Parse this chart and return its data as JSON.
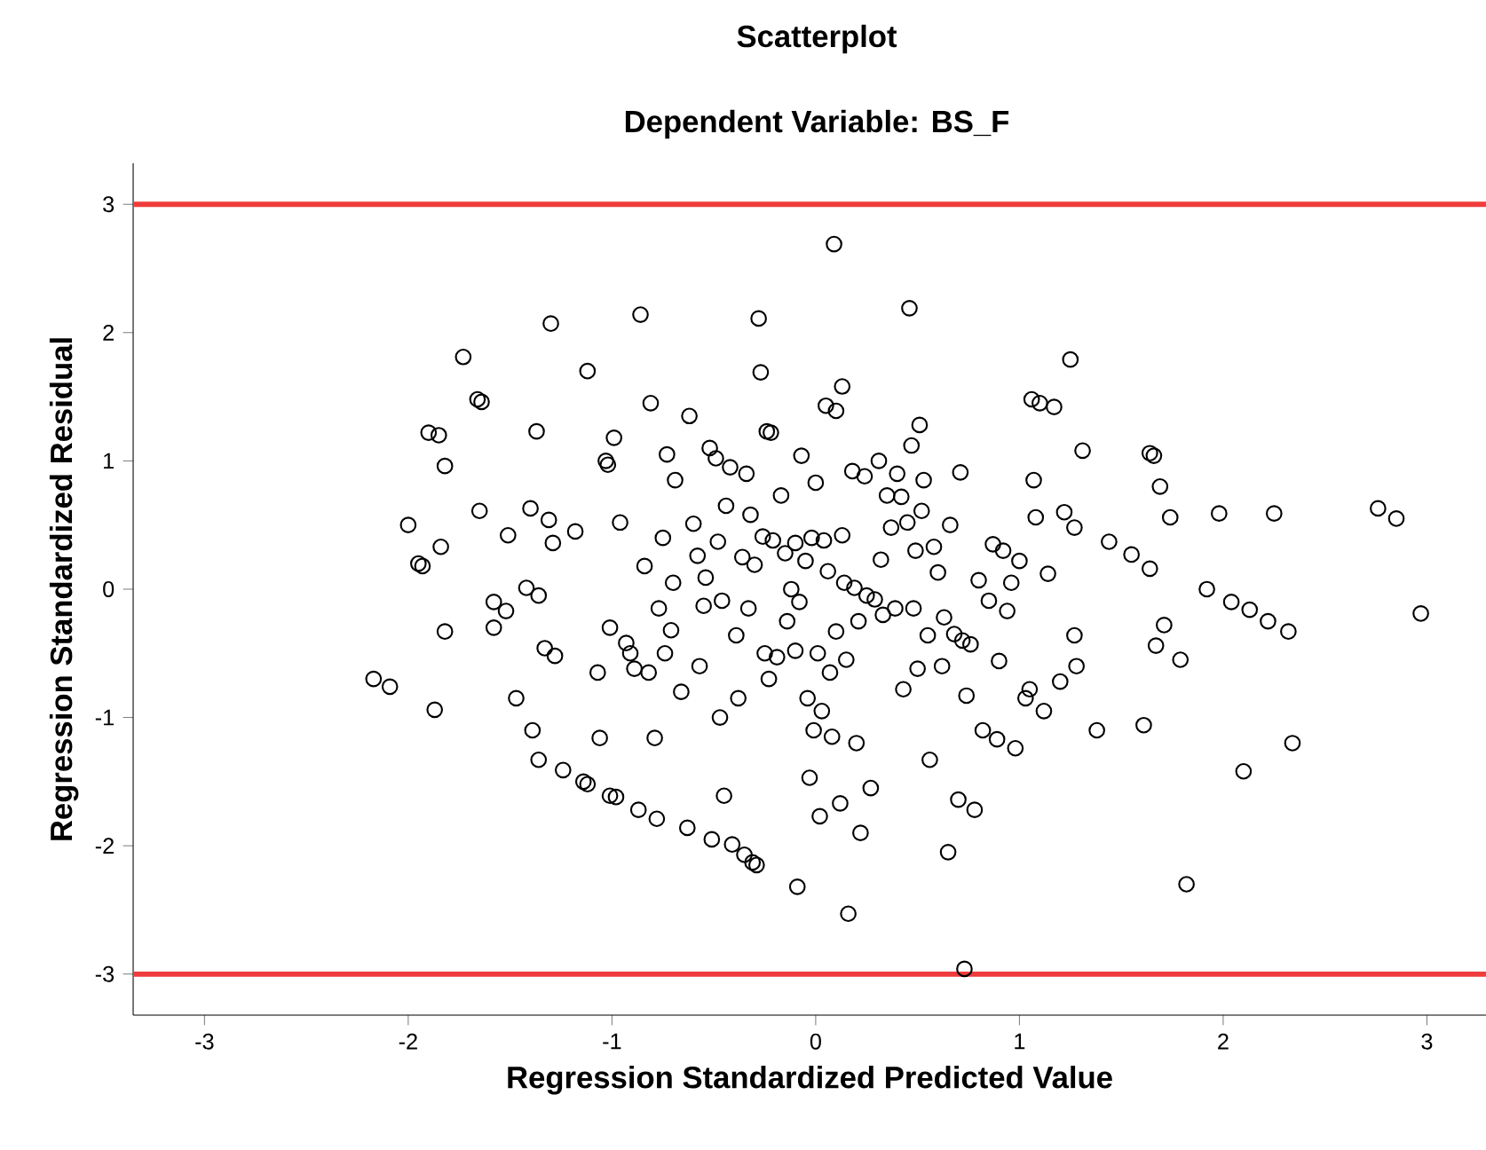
{
  "chart_data": {
    "type": "scatter",
    "title": "Scatterplot",
    "subtitle": "Dependent Variable: BS_F",
    "xlabel": "Regression Standardized Predicted Value",
    "ylabel": "Regression Standardized Residual",
    "xlim": [
      -3.35,
      3.29
    ],
    "ylim": [
      -3.32,
      3.32
    ],
    "xticks": [
      -3,
      -2,
      -1,
      0,
      1,
      2,
      3
    ],
    "yticks": [
      -3,
      -2,
      -1,
      0,
      1,
      2,
      3
    ],
    "marker": "circle",
    "ref_lines": [
      {
        "axis": "y",
        "value": 3,
        "color": "#f03c3c"
      },
      {
        "axis": "y",
        "value": -3,
        "color": "#f03c3c"
      }
    ],
    "series": [
      {
        "color": "#000000",
        "x": [
          -2.17,
          -2.09,
          -2.0,
          -1.95,
          -1.93,
          -1.9,
          -1.85,
          -1.87,
          -1.84,
          -1.82,
          -1.82,
          -1.73,
          -1.66,
          -1.64,
          -1.65,
          -1.58,
          -1.58,
          -1.52,
          -1.51,
          -1.47,
          -1.42,
          -1.4,
          -1.37,
          -1.39,
          -1.36,
          -1.36,
          -1.33,
          -1.31,
          -1.3,
          -1.29,
          -1.28,
          -1.24,
          -1.18,
          -1.14,
          -1.12,
          -1.12,
          -1.07,
          -1.06,
          -1.03,
          -1.02,
          -1.01,
          -1.01,
          -0.99,
          -0.98,
          -0.96,
          -0.93,
          -0.91,
          -0.89,
          -0.87,
          -0.86,
          -0.84,
          -0.82,
          -0.81,
          -0.79,
          -0.78,
          -0.77,
          -0.75,
          -0.74,
          -0.73,
          -0.71,
          -0.7,
          -0.69,
          -0.66,
          -0.63,
          -0.62,
          -0.6,
          -0.58,
          -0.57,
          -0.55,
          -0.54,
          -0.52,
          -0.51,
          -0.49,
          -0.48,
          -0.47,
          -0.46,
          -0.45,
          -0.44,
          -0.42,
          -0.41,
          -0.39,
          -0.38,
          -0.36,
          -0.35,
          -0.34,
          -0.33,
          -0.32,
          -0.31,
          -0.3,
          -0.29,
          -0.28,
          -0.27,
          -0.26,
          -0.25,
          -0.24,
          -0.23,
          -0.22,
          -0.21,
          -0.19,
          -0.17,
          -0.15,
          -0.14,
          -0.12,
          -0.1,
          -0.1,
          -0.09,
          -0.08,
          -0.07,
          -0.05,
          -0.04,
          -0.03,
          -0.02,
          -0.01,
          0.0,
          0.01,
          0.02,
          0.03,
          0.04,
          0.05,
          0.06,
          0.07,
          0.08,
          0.09,
          0.1,
          0.1,
          0.12,
          0.13,
          0.13,
          0.14,
          0.15,
          0.16,
          0.18,
          0.19,
          0.2,
          0.21,
          0.22,
          0.24,
          0.25,
          0.27,
          0.29,
          0.31,
          0.32,
          0.33,
          0.35,
          0.37,
          0.39,
          0.4,
          0.42,
          0.43,
          0.45,
          0.46,
          0.47,
          0.48,
          0.49,
          0.5,
          0.51,
          0.52,
          0.53,
          0.55,
          0.56,
          0.58,
          0.6,
          0.62,
          0.63,
          0.65,
          0.66,
          0.68,
          0.7,
          0.71,
          0.72,
          0.73,
          0.74,
          0.76,
          0.78,
          0.8,
          0.82,
          0.85,
          0.87,
          0.89,
          0.9,
          0.92,
          0.94,
          0.96,
          0.98,
          1.0,
          1.03,
          1.05,
          1.06,
          1.07,
          1.08,
          1.1,
          1.12,
          1.14,
          1.17,
          1.2,
          1.22,
          1.25,
          1.27,
          1.27,
          1.28,
          1.31,
          1.38,
          1.44,
          1.55,
          1.61,
          1.64,
          1.66,
          1.64,
          1.67,
          1.69,
          1.71,
          1.74,
          1.79,
          1.82,
          1.92,
          1.98,
          2.04,
          2.1,
          2.13,
          2.22,
          2.25,
          2.32,
          2.34,
          2.76,
          2.85,
          2.97
        ],
        "values": [
          -0.7,
          -0.76,
          0.5,
          0.2,
          0.18,
          1.22,
          1.2,
          -0.94,
          0.33,
          0.96,
          -0.33,
          1.81,
          1.48,
          1.46,
          0.61,
          -0.1,
          -0.3,
          -0.17,
          0.42,
          -0.85,
          0.01,
          0.63,
          1.23,
          -1.1,
          -0.05,
          -1.33,
          -0.46,
          0.54,
          2.07,
          0.36,
          -0.52,
          -1.41,
          0.45,
          -1.5,
          -1.52,
          1.7,
          -0.65,
          -1.16,
          1.0,
          0.97,
          -0.3,
          -1.61,
          1.18,
          -1.62,
          0.52,
          -0.42,
          -0.5,
          -0.62,
          -1.72,
          2.14,
          0.18,
          -0.65,
          1.45,
          -1.16,
          -1.79,
          -0.15,
          0.4,
          -0.5,
          1.05,
          -0.32,
          0.05,
          0.85,
          -0.8,
          -1.86,
          1.35,
          0.51,
          0.26,
          -0.6,
          -0.13,
          0.09,
          1.1,
          -1.95,
          1.02,
          0.37,
          -1.0,
          -0.09,
          -1.61,
          0.65,
          0.95,
          -1.99,
          -0.36,
          -0.85,
          0.25,
          -2.07,
          0.9,
          -0.15,
          0.58,
          -2.13,
          0.19,
          -2.15,
          2.11,
          1.69,
          0.41,
          -0.5,
          1.23,
          -0.7,
          1.22,
          0.38,
          -0.53,
          0.73,
          0.28,
          -0.25,
          0.0,
          -0.48,
          0.36,
          -2.32,
          -0.1,
          1.04,
          0.22,
          -0.85,
          -1.47,
          0.4,
          -1.1,
          0.83,
          -0.5,
          -1.77,
          -0.95,
          0.38,
          1.43,
          0.14,
          -0.65,
          -1.15,
          2.69,
          -0.33,
          1.39,
          -1.67,
          0.42,
          1.58,
          0.05,
          -0.55,
          -2.53,
          0.92,
          0.01,
          -1.2,
          -0.25,
          -1.9,
          0.88,
          -0.05,
          -1.55,
          -0.08,
          1.0,
          0.23,
          -0.2,
          0.73,
          0.48,
          -0.15,
          0.9,
          0.72,
          -0.78,
          0.52,
          2.19,
          1.12,
          -0.15,
          0.3,
          -0.62,
          1.28,
          0.61,
          0.85,
          -0.36,
          -1.33,
          0.33,
          0.13,
          -0.6,
          -0.22,
          -2.05,
          0.5,
          -0.35,
          -1.64,
          0.91,
          -0.4,
          -2.96,
          -0.83,
          -0.43,
          -1.72,
          0.07,
          -1.1,
          -0.09,
          0.35,
          -1.17,
          -0.56,
          0.3,
          -0.17,
          0.05,
          -1.24,
          0.22,
          -0.85,
          -0.78,
          1.48,
          0.85,
          0.56,
          1.45,
          -0.95,
          0.12,
          1.42,
          -0.72,
          0.6,
          1.79,
          -0.36,
          0.48,
          -0.6,
          1.08,
          -1.1,
          0.37,
          0.27,
          -1.06,
          1.06,
          1.04,
          0.16,
          -0.44,
          0.8,
          -0.28,
          0.56,
          -0.55,
          -2.3,
          0.0,
          0.59,
          -0.1,
          -1.42,
          -0.16,
          -0.25,
          0.59,
          -0.33,
          -1.2,
          0.63,
          0.55,
          -0.19
        ]
      }
    ]
  }
}
